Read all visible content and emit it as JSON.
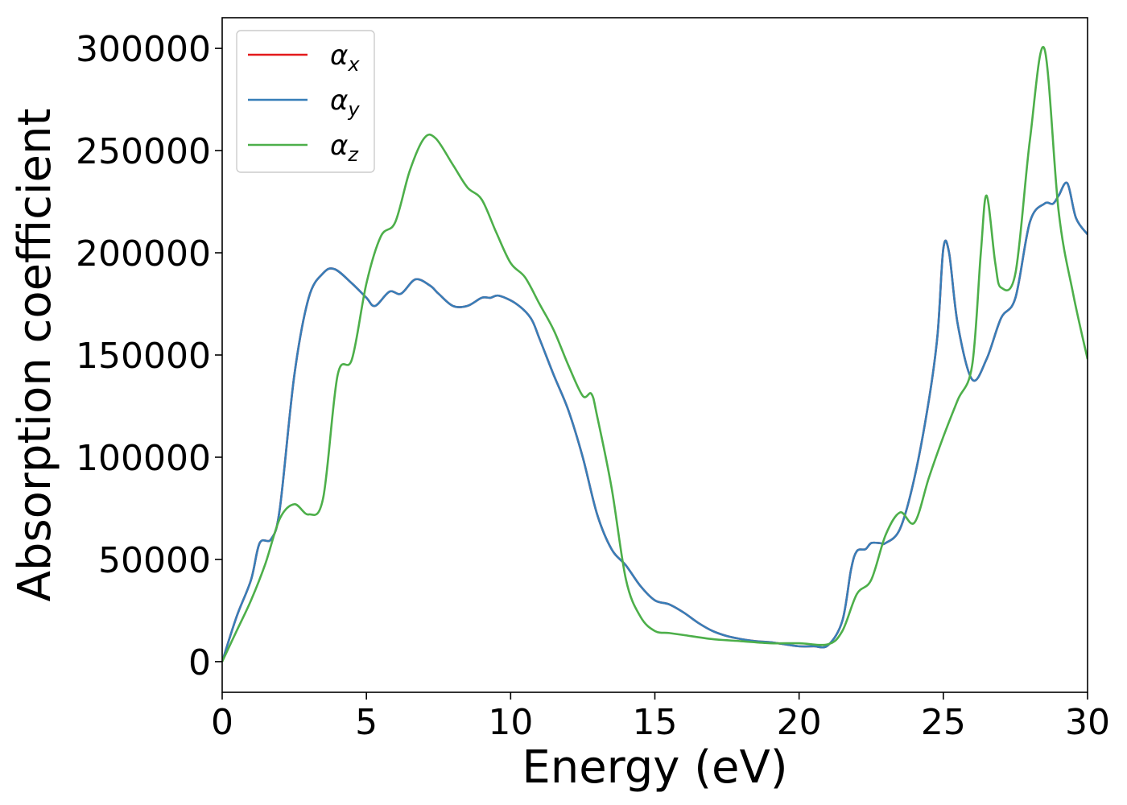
{
  "chart_data": {
    "type": "line",
    "title": "",
    "xlabel": "Energy (eV)",
    "ylabel": "Absorption coefficient",
    "xlim": [
      0,
      30
    ],
    "ylim": [
      -15000,
      315000
    ],
    "xticks": [
      0,
      5,
      10,
      15,
      20,
      25,
      30
    ],
    "xtick_labels": [
      "0",
      "5",
      "10",
      "15",
      "20",
      "25",
      "30"
    ],
    "yticks": [
      0,
      50000,
      100000,
      150000,
      200000,
      250000,
      300000
    ],
    "ytick_labels": [
      "0",
      "50000",
      "100000",
      "150000",
      "200000",
      "250000",
      "300000"
    ],
    "grid": false,
    "legend": "top-left",
    "colors": {
      "x": "#e41a1c",
      "y": "#377eb8",
      "z": "#4daf4a"
    },
    "series": [
      {
        "name": "αx",
        "symbol": "α",
        "sub": "x",
        "color": "#e41a1c",
        "x": [
          0,
          0.5,
          1,
          1.3,
          1.7,
          2,
          2.5,
          3,
          3.5,
          3.9,
          4.5,
          5,
          5.3,
          5.8,
          6.2,
          6.7,
          7.2,
          7.5,
          8,
          8.5,
          9,
          9.3,
          9.6,
          10.2,
          10.7,
          11,
          11.5,
          12,
          12.5,
          13,
          13.5,
          14,
          14.5,
          15,
          15.5,
          16,
          16.5,
          17,
          17.5,
          18,
          18.5,
          19,
          19.5,
          20,
          20.5,
          21,
          21.5,
          21.8,
          22,
          22.3,
          22.5,
          22.8,
          23,
          23.5,
          24,
          24.5,
          24.8,
          25,
          25.2,
          25.5,
          26,
          26.5,
          27,
          27.5,
          28,
          28.5,
          28.8,
          29,
          29.3,
          29.6,
          30
        ],
        "y": [
          0,
          22000,
          40000,
          58000,
          60000,
          75000,
          140000,
          178000,
          190000,
          192000,
          185000,
          178000,
          174000,
          181000,
          180000,
          187000,
          184000,
          180000,
          174000,
          174000,
          178000,
          178000,
          179000,
          175000,
          168000,
          158000,
          140000,
          123000,
          100000,
          72000,
          55000,
          47000,
          37000,
          30000,
          28000,
          24000,
          19000,
          15000,
          12500,
          11000,
          10000,
          9500,
          8500,
          7500,
          7500,
          8000,
          20000,
          45000,
          54000,
          55000,
          58000,
          58000,
          58000,
          65000,
          90000,
          128000,
          160000,
          202000,
          200000,
          165000,
          138000,
          148000,
          168000,
          178000,
          215000,
          224000,
          224000,
          228000,
          234000,
          217000,
          209000
        ]
      },
      {
        "name": "αy",
        "symbol": "α",
        "sub": "y",
        "color": "#377eb8",
        "x": [
          0,
          0.5,
          1,
          1.3,
          1.7,
          2,
          2.5,
          3,
          3.5,
          3.9,
          4.5,
          5,
          5.3,
          5.8,
          6.2,
          6.7,
          7.2,
          7.5,
          8,
          8.5,
          9,
          9.3,
          9.6,
          10.2,
          10.7,
          11,
          11.5,
          12,
          12.5,
          13,
          13.5,
          14,
          14.5,
          15,
          15.5,
          16,
          16.5,
          17,
          17.5,
          18,
          18.5,
          19,
          19.5,
          20,
          20.5,
          21,
          21.5,
          21.8,
          22,
          22.3,
          22.5,
          22.8,
          23,
          23.5,
          24,
          24.5,
          24.8,
          25,
          25.2,
          25.5,
          26,
          26.5,
          27,
          27.5,
          28,
          28.5,
          28.8,
          29,
          29.3,
          29.6,
          30
        ],
        "y": [
          0,
          22000,
          40000,
          58000,
          60000,
          75000,
          140000,
          178000,
          190000,
          192000,
          185000,
          178000,
          174000,
          181000,
          180000,
          187000,
          184000,
          180000,
          174000,
          174000,
          178000,
          178000,
          179000,
          175000,
          168000,
          158000,
          140000,
          123000,
          100000,
          72000,
          55000,
          47000,
          37000,
          30000,
          28000,
          24000,
          19000,
          15000,
          12500,
          11000,
          10000,
          9500,
          8500,
          7500,
          7500,
          8000,
          20000,
          45000,
          54000,
          55000,
          58000,
          58000,
          58000,
          65000,
          90000,
          128000,
          160000,
          202000,
          200000,
          165000,
          138000,
          148000,
          168000,
          178000,
          215000,
          224000,
          224000,
          228000,
          234000,
          217000,
          209000
        ]
      },
      {
        "name": "αz",
        "symbol": "α",
        "sub": "z",
        "color": "#4daf4a",
        "x": [
          0,
          0.5,
          1,
          1.5,
          2,
          2.5,
          3,
          3.5,
          4,
          4.5,
          5,
          5.5,
          6,
          6.5,
          7,
          7.4,
          8,
          8.5,
          9,
          9.5,
          10,
          10.5,
          11,
          11.5,
          12,
          12.5,
          12.8,
          13,
          13.5,
          14,
          14.5,
          15,
          15.5,
          16,
          17,
          18,
          19,
          20,
          21,
          21.5,
          22,
          22.5,
          23,
          23.5,
          24,
          24.5,
          25,
          25.5,
          26,
          26.3,
          26.5,
          26.8,
          27,
          27.5,
          28,
          28.5,
          29,
          29.5,
          30
        ],
        "y": [
          0,
          15000,
          30000,
          48000,
          70000,
          77000,
          72000,
          80000,
          140000,
          148000,
          185000,
          208000,
          215000,
          240000,
          256000,
          256000,
          243000,
          232000,
          226000,
          210000,
          195000,
          188000,
          175000,
          162000,
          145000,
          130000,
          131000,
          120000,
          85000,
          40000,
          22000,
          15000,
          14000,
          13000,
          11000,
          10000,
          9000,
          9000,
          8500,
          15000,
          33000,
          40000,
          62000,
          73000,
          68000,
          90000,
          110000,
          128000,
          145000,
          200000,
          228000,
          195000,
          183000,
          190000,
          255000,
          300000,
          220000,
          180000,
          148000
        ]
      }
    ]
  }
}
